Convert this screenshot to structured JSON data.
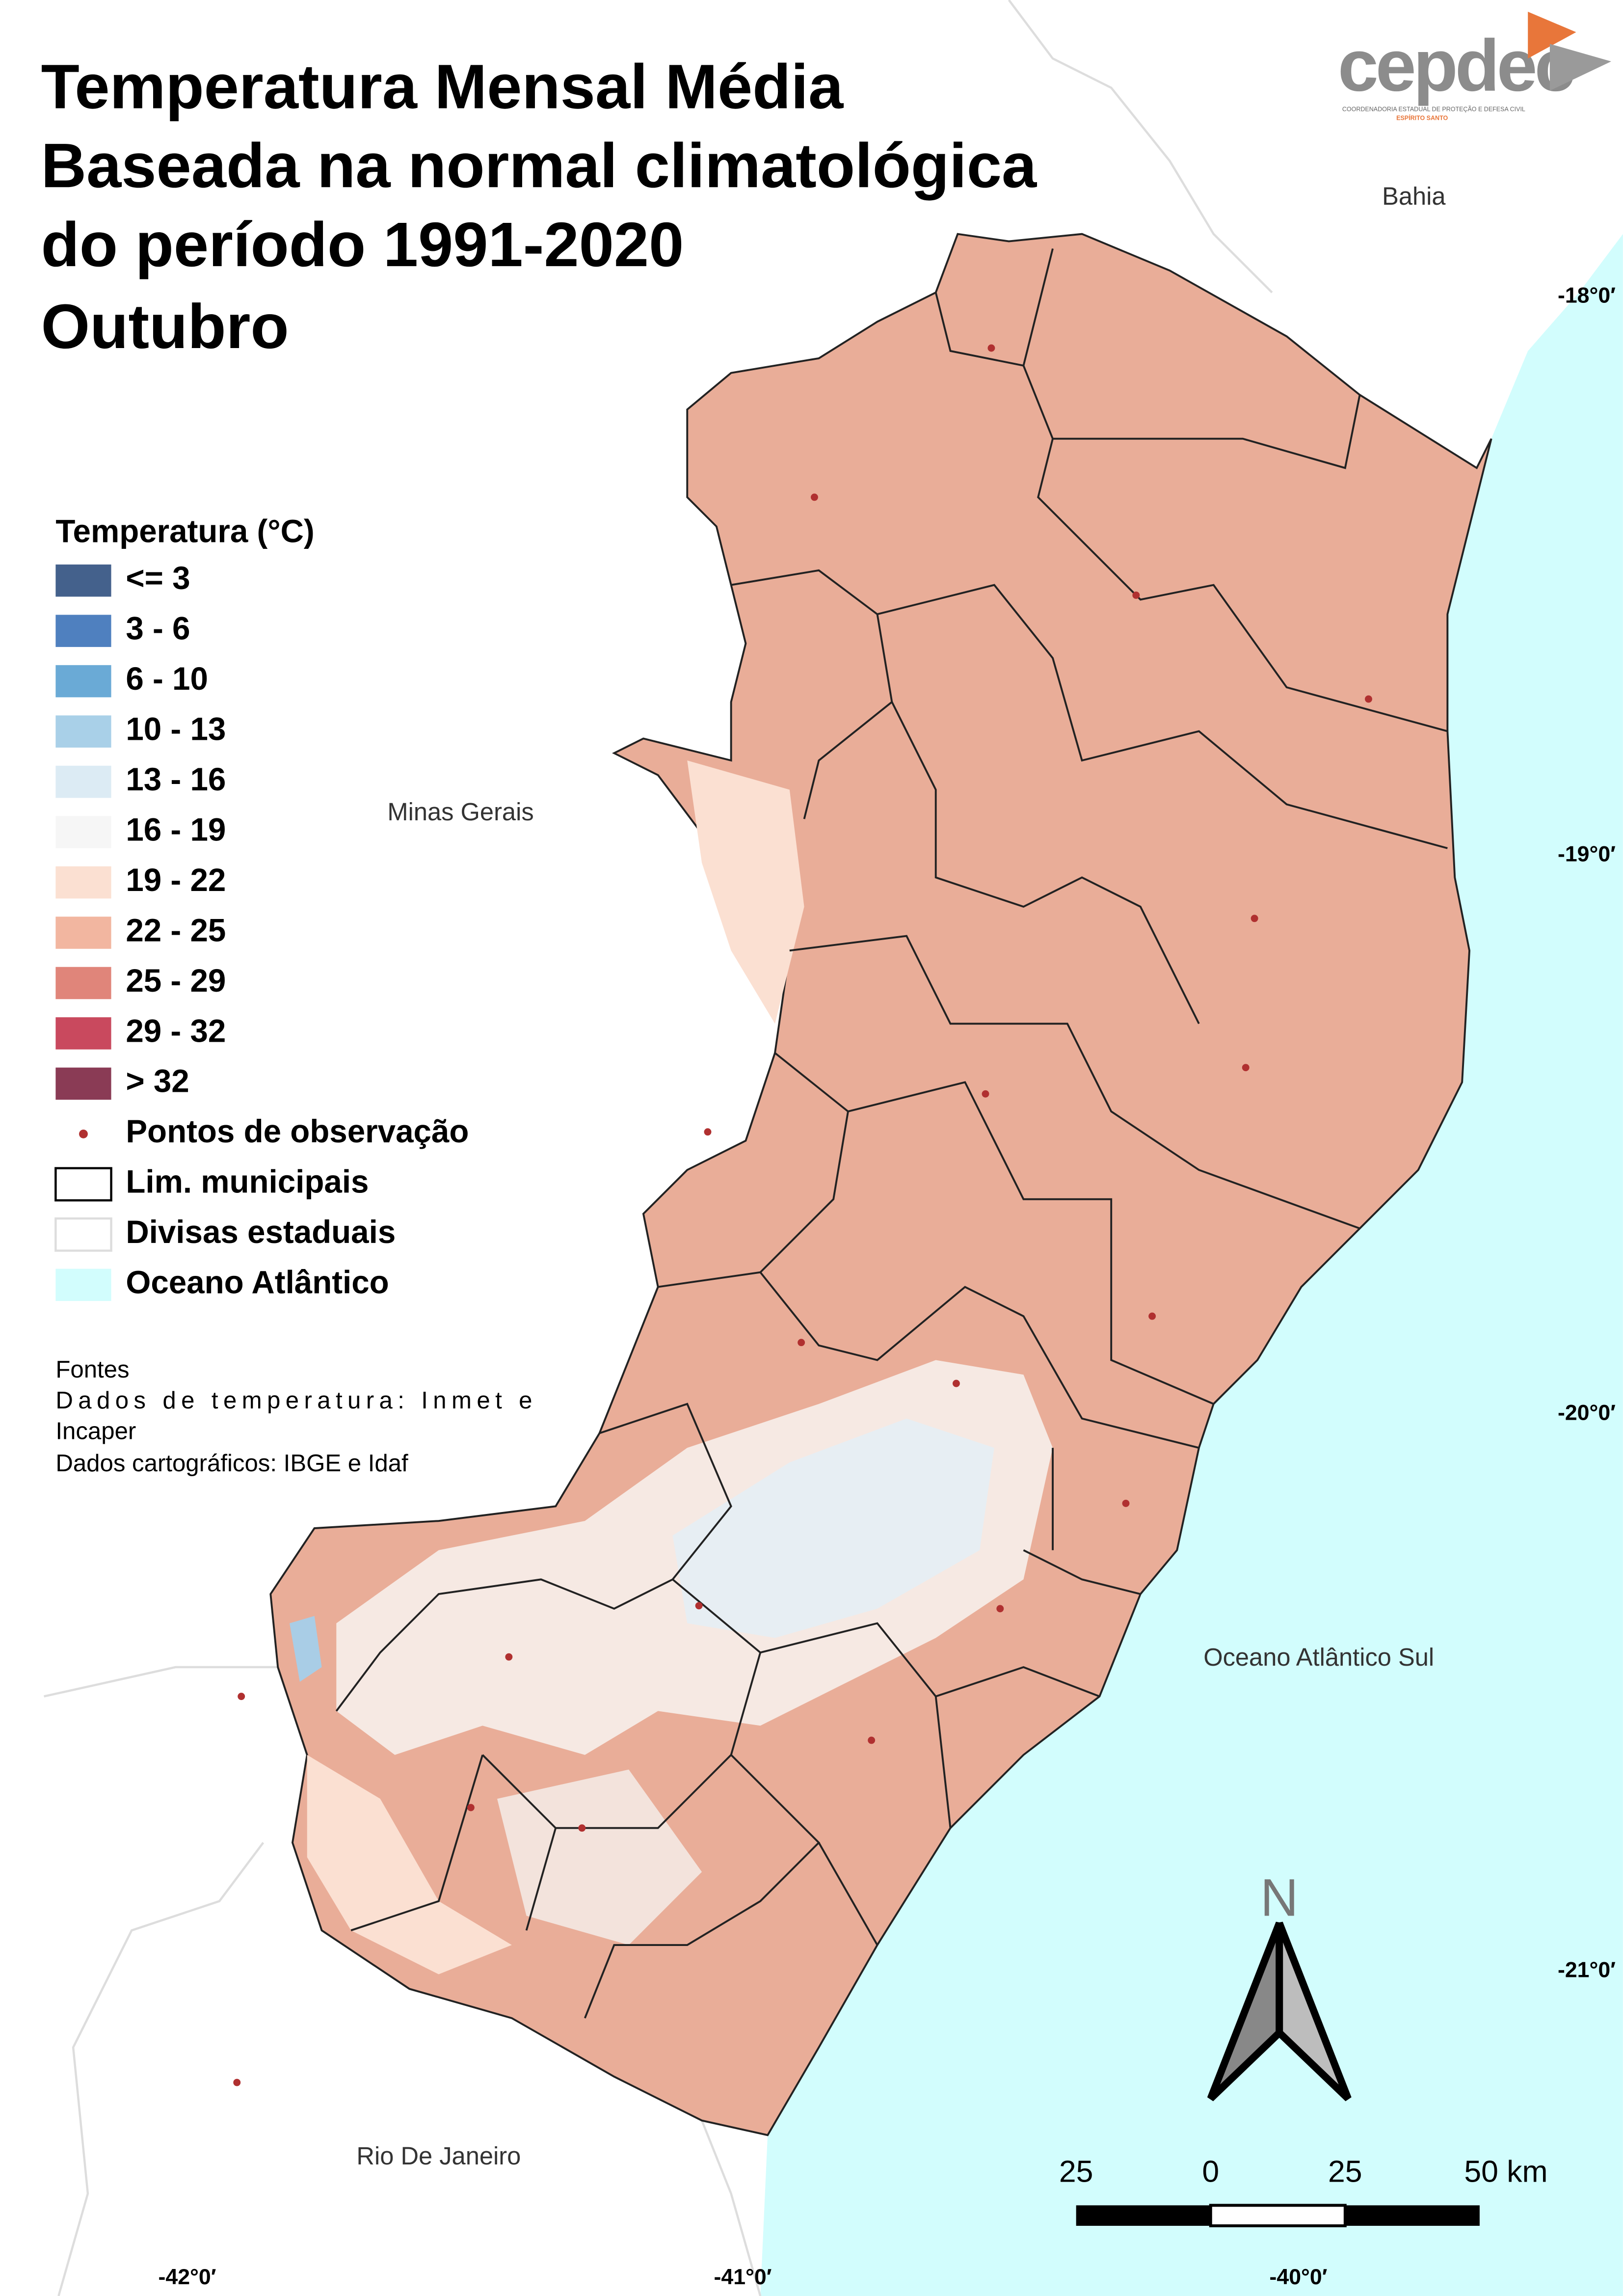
{
  "title": [
    "Temperatura Mensal Média",
    "Baseada na normal climatológica",
    "do período 1991-2020",
    "Outubro"
  ],
  "logo": {
    "name": "cepdec",
    "subtitle": "COORDENADORIA ESTADUAL DE PROTEÇÃO E DEFESA CIVIL",
    "state": "ESPÍRITO SANTO"
  },
  "legend": {
    "title": "Temperatura (°C)",
    "items": [
      {
        "label": "<= 3",
        "color": "#44618c",
        "style": "fill"
      },
      {
        "label": "3 - 6",
        "color": "#4f80bf",
        "style": "fill"
      },
      {
        "label": "6 - 10",
        "color": "#6aaad6",
        "style": "fill"
      },
      {
        "label": "10 - 13",
        "color": "#a9d0e8",
        "style": "fill"
      },
      {
        "label": "13 - 16",
        "color": "#dcebf4",
        "style": "fill"
      },
      {
        "label": "16 - 19",
        "color": "#f6f6f6",
        "style": "fill"
      },
      {
        "label": "19 - 22",
        "color": "#fbe0d2",
        "style": "fill"
      },
      {
        "label": "22 - 25",
        "color": "#f2b6a0",
        "style": "fill"
      },
      {
        "label": "25 - 29",
        "color": "#e0857a",
        "style": "fill"
      },
      {
        "label": "29 - 32",
        "color": "#c9495e",
        "style": "fill"
      },
      {
        "label": "> 32",
        "color": "#8a3b55",
        "style": "fill"
      },
      {
        "label": "Pontos de observação",
        "color": "#b03030",
        "style": "point"
      },
      {
        "label": "Lim. municipais",
        "color": "#000000",
        "style": "outline"
      },
      {
        "label": "Divisas estaduais",
        "color": "#dddddd",
        "style": "outline"
      },
      {
        "label": "Oceano Atlântico",
        "color": "#d2fdfd",
        "style": "fill"
      }
    ]
  },
  "sources": {
    "heading": "Fontes",
    "lines": [
      "Dados de temperatura: Inmet e",
      "Incaper",
      "Dados cartográficos: IBGE e Idaf"
    ]
  },
  "place_labels": [
    "Bahia",
    "Minas Gerais",
    "Oceano Atlântico Sul",
    "Rio De Janeiro"
  ],
  "latitude_labels": [
    "-18°0′",
    "-19°0′",
    "-20°0′",
    "-21°0′"
  ],
  "longitude_labels": [
    "-42°0′",
    "-41°0′",
    "-40°0′"
  ],
  "north": "N",
  "scale_bar": [
    "25",
    "0",
    "25",
    "50 km"
  ]
}
